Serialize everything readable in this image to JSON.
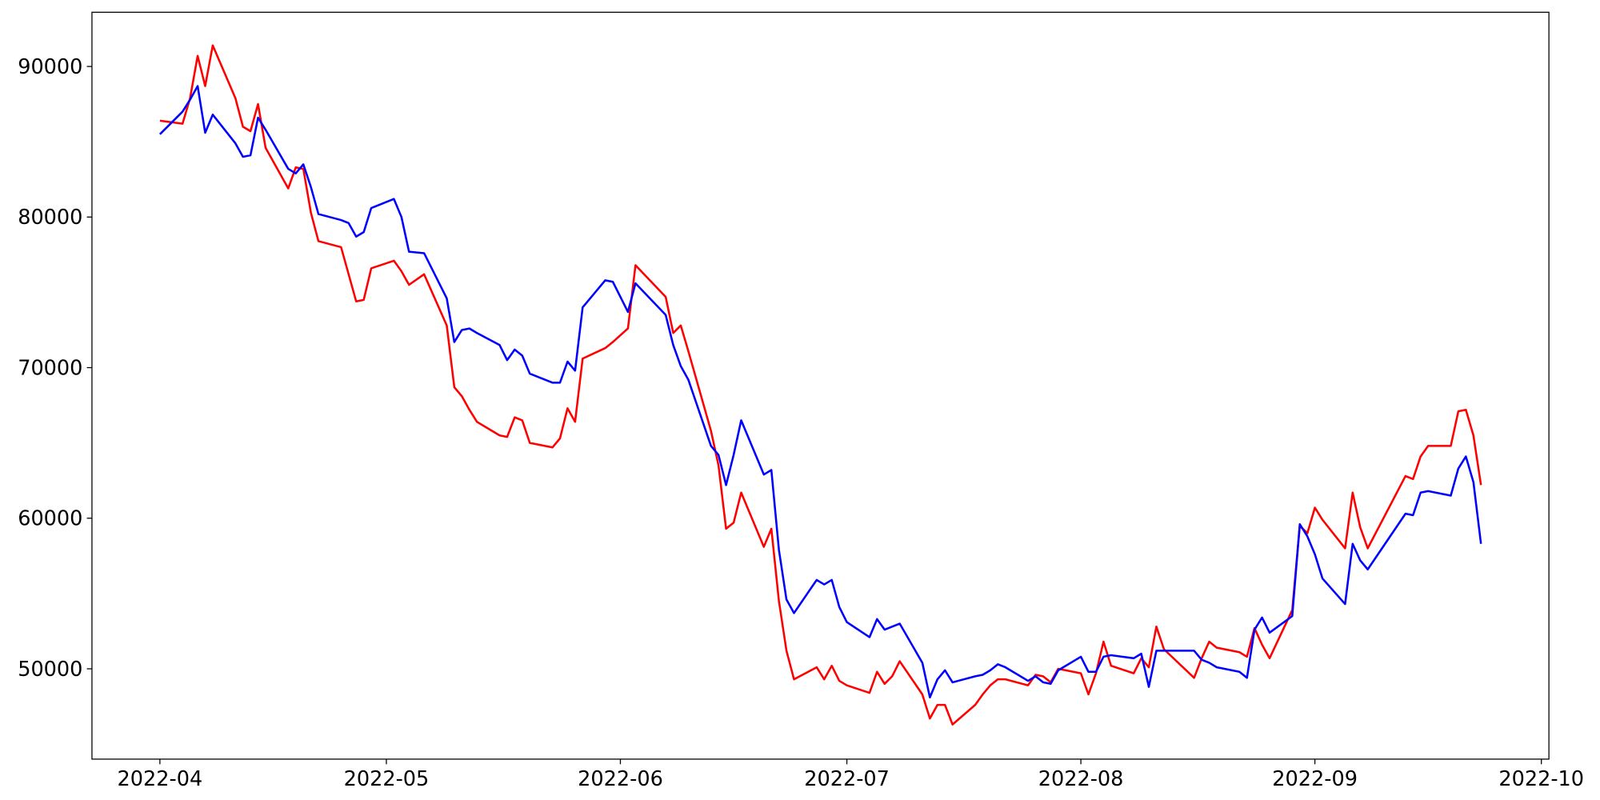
{
  "chart_data": {
    "type": "line",
    "x": [
      "2022-04-01",
      "2022-04-04",
      "2022-04-05",
      "2022-04-06",
      "2022-04-07",
      "2022-04-08",
      "2022-04-11",
      "2022-04-12",
      "2022-04-13",
      "2022-04-14",
      "2022-04-15",
      "2022-04-18",
      "2022-04-19",
      "2022-04-20",
      "2022-04-21",
      "2022-04-22",
      "2022-04-25",
      "2022-04-26",
      "2022-04-27",
      "2022-04-28",
      "2022-04-29",
      "2022-05-02",
      "2022-05-03",
      "2022-05-04",
      "2022-05-06",
      "2022-05-09",
      "2022-05-10",
      "2022-05-11",
      "2022-05-12",
      "2022-05-13",
      "2022-05-16",
      "2022-05-17",
      "2022-05-18",
      "2022-05-19",
      "2022-05-20",
      "2022-05-23",
      "2022-05-24",
      "2022-05-25",
      "2022-05-26",
      "2022-05-27",
      "2022-05-30",
      "2022-05-31",
      "2022-06-02",
      "2022-06-03",
      "2022-06-07",
      "2022-06-08",
      "2022-06-09",
      "2022-06-10",
      "2022-06-13",
      "2022-06-14",
      "2022-06-15",
      "2022-06-16",
      "2022-06-17",
      "2022-06-20",
      "2022-06-21",
      "2022-06-22",
      "2022-06-23",
      "2022-06-24",
      "2022-06-27",
      "2022-06-28",
      "2022-06-29",
      "2022-06-30",
      "2022-07-01",
      "2022-07-04",
      "2022-07-05",
      "2022-07-06",
      "2022-07-07",
      "2022-07-08",
      "2022-07-11",
      "2022-07-12",
      "2022-07-13",
      "2022-07-14",
      "2022-07-15",
      "2022-07-18",
      "2022-07-19",
      "2022-07-20",
      "2022-07-21",
      "2022-07-22",
      "2022-07-25",
      "2022-07-26",
      "2022-07-27",
      "2022-07-28",
      "2022-07-29",
      "2022-08-01",
      "2022-08-02",
      "2022-08-03",
      "2022-08-04",
      "2022-08-05",
      "2022-08-08",
      "2022-08-09",
      "2022-08-10",
      "2022-08-11",
      "2022-08-12",
      "2022-08-16",
      "2022-08-17",
      "2022-08-18",
      "2022-08-19",
      "2022-08-22",
      "2022-08-23",
      "2022-08-24",
      "2022-08-25",
      "2022-08-26",
      "2022-08-29",
      "2022-08-30",
      "2022-08-31",
      "2022-09-01",
      "2022-09-02",
      "2022-09-05",
      "2022-09-06",
      "2022-09-07",
      "2022-09-08",
      "2022-09-13",
      "2022-09-14",
      "2022-09-15",
      "2022-09-16",
      "2022-09-19",
      "2022-09-20",
      "2022-09-21",
      "2022-09-22",
      "2022-09-23"
    ],
    "series": [
      {
        "color": "#ff0000",
        "values": [
          86400,
          86200,
          87900,
          90700,
          88700,
          91400,
          87900,
          86000,
          85700,
          87500,
          84600,
          81900,
          83300,
          83200,
          80300,
          78400,
          78000,
          76200,
          74400,
          74500,
          76600,
          77100,
          76400,
          75500,
          76200,
          72800,
          68700,
          68100,
          67200,
          66400,
          65500,
          65400,
          66700,
          66500,
          65000,
          64700,
          65300,
          67300,
          66400,
          70600,
          71300,
          71700,
          72600,
          76800,
          74700,
          72300,
          72800,
          71100,
          65800,
          63500,
          59300,
          59700,
          61700,
          58100,
          59300,
          54500,
          51200,
          49300,
          50100,
          49300,
          50200,
          49200,
          48900,
          48400,
          49800,
          49000,
          49500,
          50500,
          48300,
          46700,
          47600,
          47600,
          46300,
          47600,
          48300,
          48900,
          49300,
          49300,
          48900,
          49600,
          49500,
          49100,
          50000,
          49700,
          48300,
          49700,
          51800,
          50200,
          49700,
          50700,
          50100,
          52800,
          51300,
          49400,
          50700,
          51800,
          51400,
          51100,
          50800,
          52700,
          51600,
          50700,
          53900,
          59500,
          59000,
          60700,
          59900,
          58000,
          61700,
          59400,
          58000,
          62800,
          62600,
          64100,
          64800,
          64800,
          67100,
          67200,
          65500,
          62200
        ]
      },
      {
        "color": "#0000ff",
        "values": [
          85500,
          87000,
          87800,
          88700,
          85600,
          86800,
          84900,
          84000,
          84100,
          86600,
          85800,
          83200,
          82900,
          83500,
          82000,
          80200,
          79800,
          79600,
          78700,
          79000,
          80600,
          81200,
          80000,
          77700,
          77600,
          74600,
          71700,
          72500,
          72600,
          72300,
          71500,
          70500,
          71200,
          70800,
          69600,
          69000,
          69000,
          70400,
          69800,
          74000,
          75800,
          75700,
          73700,
          75600,
          73500,
          71500,
          70100,
          69200,
          64800,
          64200,
          62200,
          64200,
          66500,
          62900,
          63200,
          57900,
          54600,
          53700,
          55900,
          55600,
          55900,
          54100,
          53100,
          52100,
          53300,
          52600,
          52800,
          53000,
          50400,
          48100,
          49300,
          49900,
          49100,
          49500,
          49600,
          49900,
          50300,
          50100,
          49200,
          49500,
          49100,
          49000,
          49900,
          50800,
          49800,
          49800,
          50800,
          50900,
          50700,
          51000,
          48800,
          51200,
          51200,
          51200,
          50600,
          50400,
          50100,
          49800,
          49400,
          52600,
          53400,
          52400,
          53500,
          59600,
          58800,
          57600,
          56000,
          54300,
          58300,
          57200,
          56600,
          60300,
          60200,
          61700,
          61800,
          61500,
          63300,
          64100,
          62400,
          58300
        ]
      }
    ],
    "xlim": [
      "2022-03-23",
      "2022-10-02"
    ],
    "xticks": [
      {
        "value": "2022-04-01",
        "label": "2022-04"
      },
      {
        "value": "2022-05-01",
        "label": "2022-05"
      },
      {
        "value": "2022-06-01",
        "label": "2022-06"
      },
      {
        "value": "2022-07-01",
        "label": "2022-07"
      },
      {
        "value": "2022-08-01",
        "label": "2022-08"
      },
      {
        "value": "2022-09-01",
        "label": "2022-09"
      },
      {
        "value": "2022-10-01",
        "label": "2022-10"
      }
    ],
    "ylim": [
      44000,
      93600
    ],
    "yticks": [
      50000,
      60000,
      70000,
      80000,
      90000
    ],
    "grid": false
  }
}
